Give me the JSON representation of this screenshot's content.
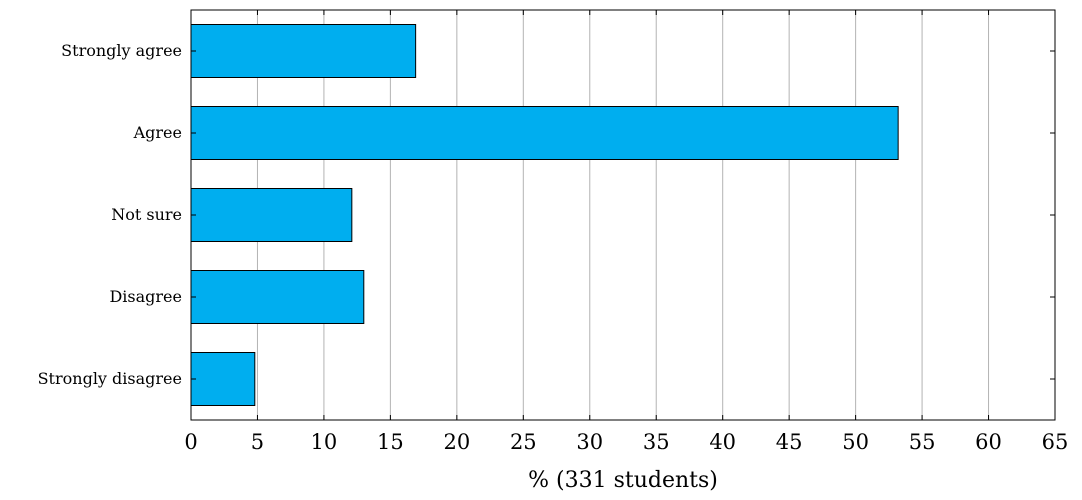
{
  "chart_data": {
    "type": "bar",
    "orientation": "horizontal",
    "categories": [
      "Strongly agree",
      "Agree",
      "Not sure",
      "Disagree",
      "Strongly disagree"
    ],
    "values": [
      16.9,
      53.2,
      12.1,
      13.0,
      4.8
    ],
    "xlabel": "% (331 students)",
    "ylabel": "",
    "xlim": [
      0,
      65
    ],
    "xticks": [
      0,
      5,
      10,
      15,
      20,
      25,
      30,
      35,
      40,
      45,
      50,
      55,
      60,
      65
    ],
    "grid": "vertical",
    "bar_color": "#00aeef"
  }
}
